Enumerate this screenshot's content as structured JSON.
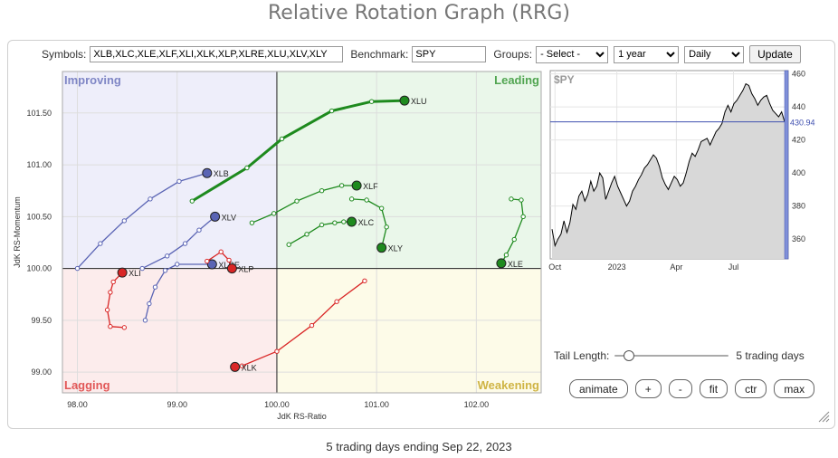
{
  "page": {
    "title": "Relative Rotation Graph (RRG)",
    "footer": "5 trading days ending Sep 22, 2023"
  },
  "toolbar": {
    "symbols_label": "Symbols:",
    "symbols_value": "XLB,XLC,XLE,XLF,XLI,XLK,XLP,XLRE,XLU,XLV,XLY",
    "benchmark_label": "Benchmark:",
    "benchmark_value": "SPY",
    "groups_label": "Groups:",
    "groups_value": "- Select -",
    "period_value": "1 year",
    "interval_value": "Daily",
    "update_label": "Update"
  },
  "controls": {
    "tail_label": "Tail Length:",
    "tail_value_text": "5 trading days",
    "tail_fraction": 0.08,
    "animate": "animate",
    "plus": "+",
    "minus": "-",
    "fit": "fit",
    "ctr": "ctr",
    "max": "max"
  },
  "colors": {
    "improving": "#5a64b4",
    "leading": "#1e8a1e",
    "lagging": "#d92626",
    "weakening": "#c8a828"
  },
  "chart_data": [
    {
      "type": "scatter",
      "xlabel": "JdK RS-Ratio",
      "ylabel": "JdK RS-Momentum",
      "xlim": [
        97.85,
        102.65
      ],
      "ylim": [
        98.8,
        101.9
      ],
      "xticks": [
        98,
        99,
        100,
        101,
        102
      ],
      "xtick_labels": [
        "98.00",
        "99.00",
        "100.00",
        "101.00",
        "102.00"
      ],
      "yticks": [
        99,
        99.5,
        100,
        100.5,
        101,
        101.5
      ],
      "ytick_labels": [
        "99.00",
        "99.50",
        "100.00",
        "100.50",
        "101.00",
        "101.50"
      ],
      "quadrants": {
        "improving": "Improving",
        "leading": "Leading",
        "lagging": "Lagging",
        "weakening": "Weakening"
      },
      "series": [
        {
          "name": "XLU",
          "color": "#1e8a1e",
          "points": [
            [
              99.15,
              100.65
            ],
            [
              99.7,
              100.97
            ],
            [
              100.05,
              101.25
            ],
            [
              100.55,
              101.52
            ],
            [
              100.95,
              101.61
            ],
            [
              101.28,
              101.62
            ]
          ]
        },
        {
          "name": "XLB",
          "color": "#5a64b4",
          "points": [
            [
              98.0,
              100.0
            ],
            [
              98.23,
              100.24
            ],
            [
              98.47,
              100.46
            ],
            [
              98.73,
              100.67
            ],
            [
              99.02,
              100.84
            ],
            [
              99.3,
              100.92
            ]
          ]
        },
        {
          "name": "XLV",
          "color": "#5a64b4",
          "points": [
            [
              98.65,
              100.0
            ],
            [
              98.9,
              100.12
            ],
            [
              99.08,
              100.24
            ],
            [
              99.22,
              100.37
            ],
            [
              99.38,
              100.5
            ]
          ]
        },
        {
          "name": "XLRE",
          "color": "#5a64b4",
          "points": [
            [
              98.68,
              99.5
            ],
            [
              98.72,
              99.66
            ],
            [
              98.78,
              99.82
            ],
            [
              98.88,
              99.98
            ],
            [
              99.0,
              100.04
            ],
            [
              99.35,
              100.04
            ]
          ]
        },
        {
          "name": "XLP",
          "color": "#d92626",
          "points": [
            [
              99.3,
              100.07
            ],
            [
              99.44,
              100.16
            ],
            [
              99.52,
              100.08
            ],
            [
              99.55,
              100.0
            ]
          ]
        },
        {
          "name": "XLI",
          "color": "#d92626",
          "points": [
            [
              98.47,
              99.43
            ],
            [
              98.33,
              99.44
            ],
            [
              98.3,
              99.6
            ],
            [
              98.33,
              99.77
            ],
            [
              98.36,
              99.87
            ],
            [
              98.45,
              99.96
            ]
          ]
        },
        {
          "name": "XLK",
          "color": "#d92626",
          "points": [
            [
              100.88,
              99.88
            ],
            [
              100.6,
              99.68
            ],
            [
              100.35,
              99.45
            ],
            [
              100.0,
              99.2
            ],
            [
              99.65,
              99.06
            ],
            [
              99.58,
              99.05
            ]
          ]
        },
        {
          "name": "XLF",
          "color": "#1e8a1e",
          "points": [
            [
              99.75,
              100.44
            ],
            [
              99.97,
              100.53
            ],
            [
              100.2,
              100.65
            ],
            [
              100.45,
              100.75
            ],
            [
              100.65,
              100.8
            ],
            [
              100.8,
              100.8
            ]
          ]
        },
        {
          "name": "XLC",
          "color": "#1e8a1e",
          "points": [
            [
              100.12,
              100.23
            ],
            [
              100.3,
              100.33
            ],
            [
              100.45,
              100.42
            ],
            [
              100.58,
              100.44
            ],
            [
              100.67,
              100.45
            ],
            [
              100.75,
              100.45
            ]
          ]
        },
        {
          "name": "XLY",
          "color": "#1e8a1e",
          "points": [
            [
              100.75,
              100.67
            ],
            [
              100.9,
              100.66
            ],
            [
              101.05,
              100.58
            ],
            [
              101.1,
              100.4
            ],
            [
              101.05,
              100.2
            ]
          ]
        },
        {
          "name": "XLE",
          "color": "#1e8a1e",
          "points": [
            [
              102.35,
              100.67
            ],
            [
              102.45,
              100.66
            ],
            [
              102.47,
              100.5
            ],
            [
              102.38,
              100.28
            ],
            [
              102.3,
              100.13
            ],
            [
              102.25,
              100.05
            ]
          ]
        }
      ]
    },
    {
      "type": "line",
      "title": "$PY",
      "x_ticks": [
        "Oct",
        "2023",
        "Apr",
        "Jul"
      ],
      "y_ticks": [
        360,
        380,
        400,
        420,
        440,
        460
      ],
      "ylim": [
        348,
        462
      ],
      "last_value": "430.94",
      "values": [
        366,
        356,
        360,
        363,
        371,
        364,
        370,
        381,
        378,
        386,
        389,
        383,
        387,
        395,
        389,
        392,
        400,
        397,
        384,
        389,
        394,
        398,
        392,
        388,
        384,
        380,
        383,
        389,
        392,
        396,
        399,
        403,
        405,
        408,
        411,
        409,
        404,
        397,
        393,
        390,
        394,
        398,
        396,
        392,
        394,
        400,
        407,
        412,
        410,
        414,
        419,
        420,
        421,
        417,
        421,
        425,
        427,
        430,
        437,
        441,
        437,
        442,
        444,
        447,
        450,
        454,
        453,
        448,
        445,
        441,
        444,
        446,
        447,
        442,
        438,
        436,
        434,
        437,
        431
      ]
    }
  ]
}
